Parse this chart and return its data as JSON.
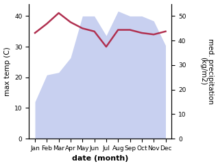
{
  "months": [
    "Jan",
    "Feb",
    "Mar",
    "Apr",
    "May",
    "Jun",
    "Jul",
    "Aug",
    "Sep",
    "Oct",
    "Nov",
    "Dec"
  ],
  "temperature": [
    34.5,
    37.5,
    41.0,
    38.0,
    36.0,
    35.0,
    30.0,
    35.5,
    35.5,
    34.5,
    34.0,
    35.0
  ],
  "precipitation": [
    15,
    26,
    27,
    33,
    50,
    50,
    42,
    52,
    50,
    50,
    48,
    38
  ],
  "temp_color": "#b03050",
  "precip_fill_color": "#c8d0f0",
  "ylabel_left": "max temp (C)",
  "ylabel_right": "med. precipitation\n(kg/m2)",
  "xlabel": "date (month)",
  "ylim_left": [
    0,
    44
  ],
  "ylim_right": [
    0,
    55
  ],
  "yticks_left": [
    0,
    10,
    20,
    30,
    40
  ],
  "yticks_right": [
    0,
    10,
    20,
    30,
    40,
    50
  ],
  "axis_fontsize": 7.5,
  "tick_fontsize": 6.5,
  "xlabel_fontsize": 8
}
